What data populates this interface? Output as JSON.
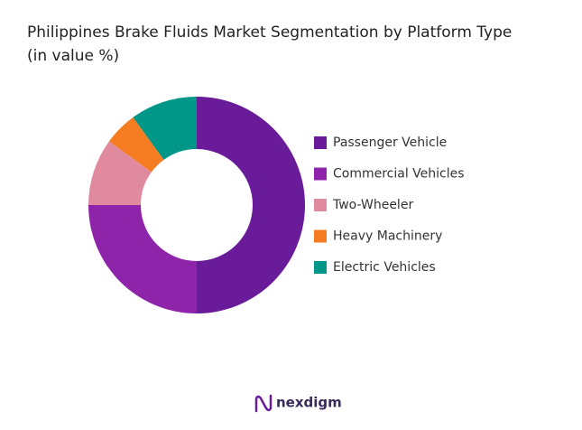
{
  "chart_data": {
    "type": "donut",
    "title": "Philippines Brake Fluids Market Segmentation by Platform Type",
    "subtitle": "(in value %)",
    "categories": [
      "Passenger Vehicle",
      "Commercial Vehicles",
      "Two-Wheeler",
      "Heavy Machinery",
      "Electric Vehicles"
    ],
    "values": [
      50,
      25,
      10,
      5,
      10
    ],
    "colors": [
      "#6a1b9a",
      "#8e24aa",
      "#e08aa0",
      "#f57c20",
      "#009688"
    ],
    "legend": "right"
  },
  "footer": {
    "brand": "nexdigm"
  }
}
